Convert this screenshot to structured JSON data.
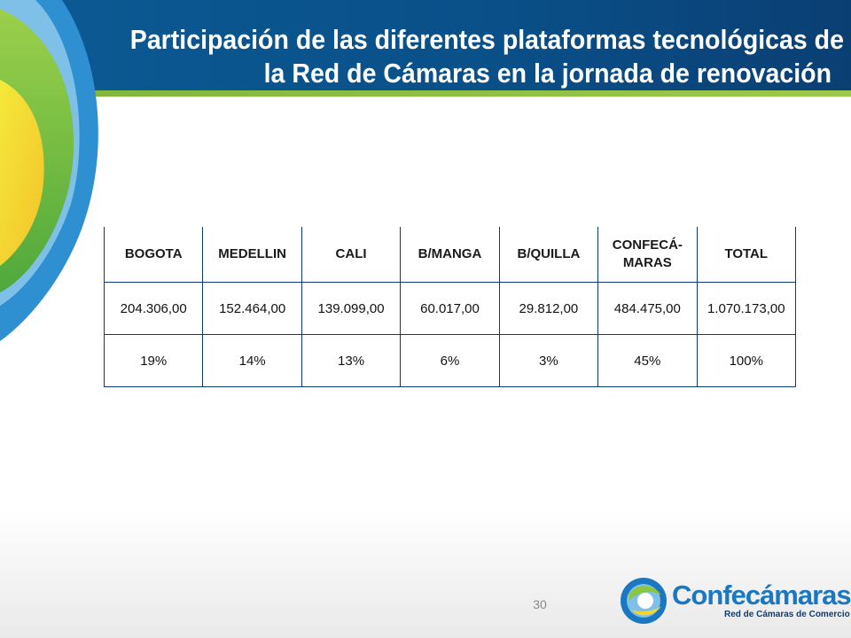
{
  "slide": {
    "title_line1": "Participación de las diferentes plataformas tecnológicas de",
    "title_line2": "la Red de Cámaras en la jornada de renovación",
    "page_number": "30"
  },
  "table": {
    "headers": [
      "BOGOTA",
      "MEDELLIN",
      "CALI",
      "B/MANGA",
      "B/QUILLA",
      "CONFECÁ-\nMARAS",
      "TOTAL"
    ],
    "values": [
      "204.306,00",
      "152.464,00",
      "139.099,00",
      "60.017,00",
      "29.812,00",
      "484.475,00",
      "1.070.173,00"
    ],
    "percentages": [
      "19%",
      "14%",
      "13%",
      "6%",
      "3%",
      "45%",
      "100%"
    ]
  },
  "logo": {
    "word_part1": "Confe",
    "word_part2": "cámaras",
    "subtitle": "Red de Cámaras de Comercio"
  },
  "colors": {
    "header_blue": "#0b5a94",
    "accent_green": "#7fb53a",
    "table_border": "#0b3b78"
  }
}
